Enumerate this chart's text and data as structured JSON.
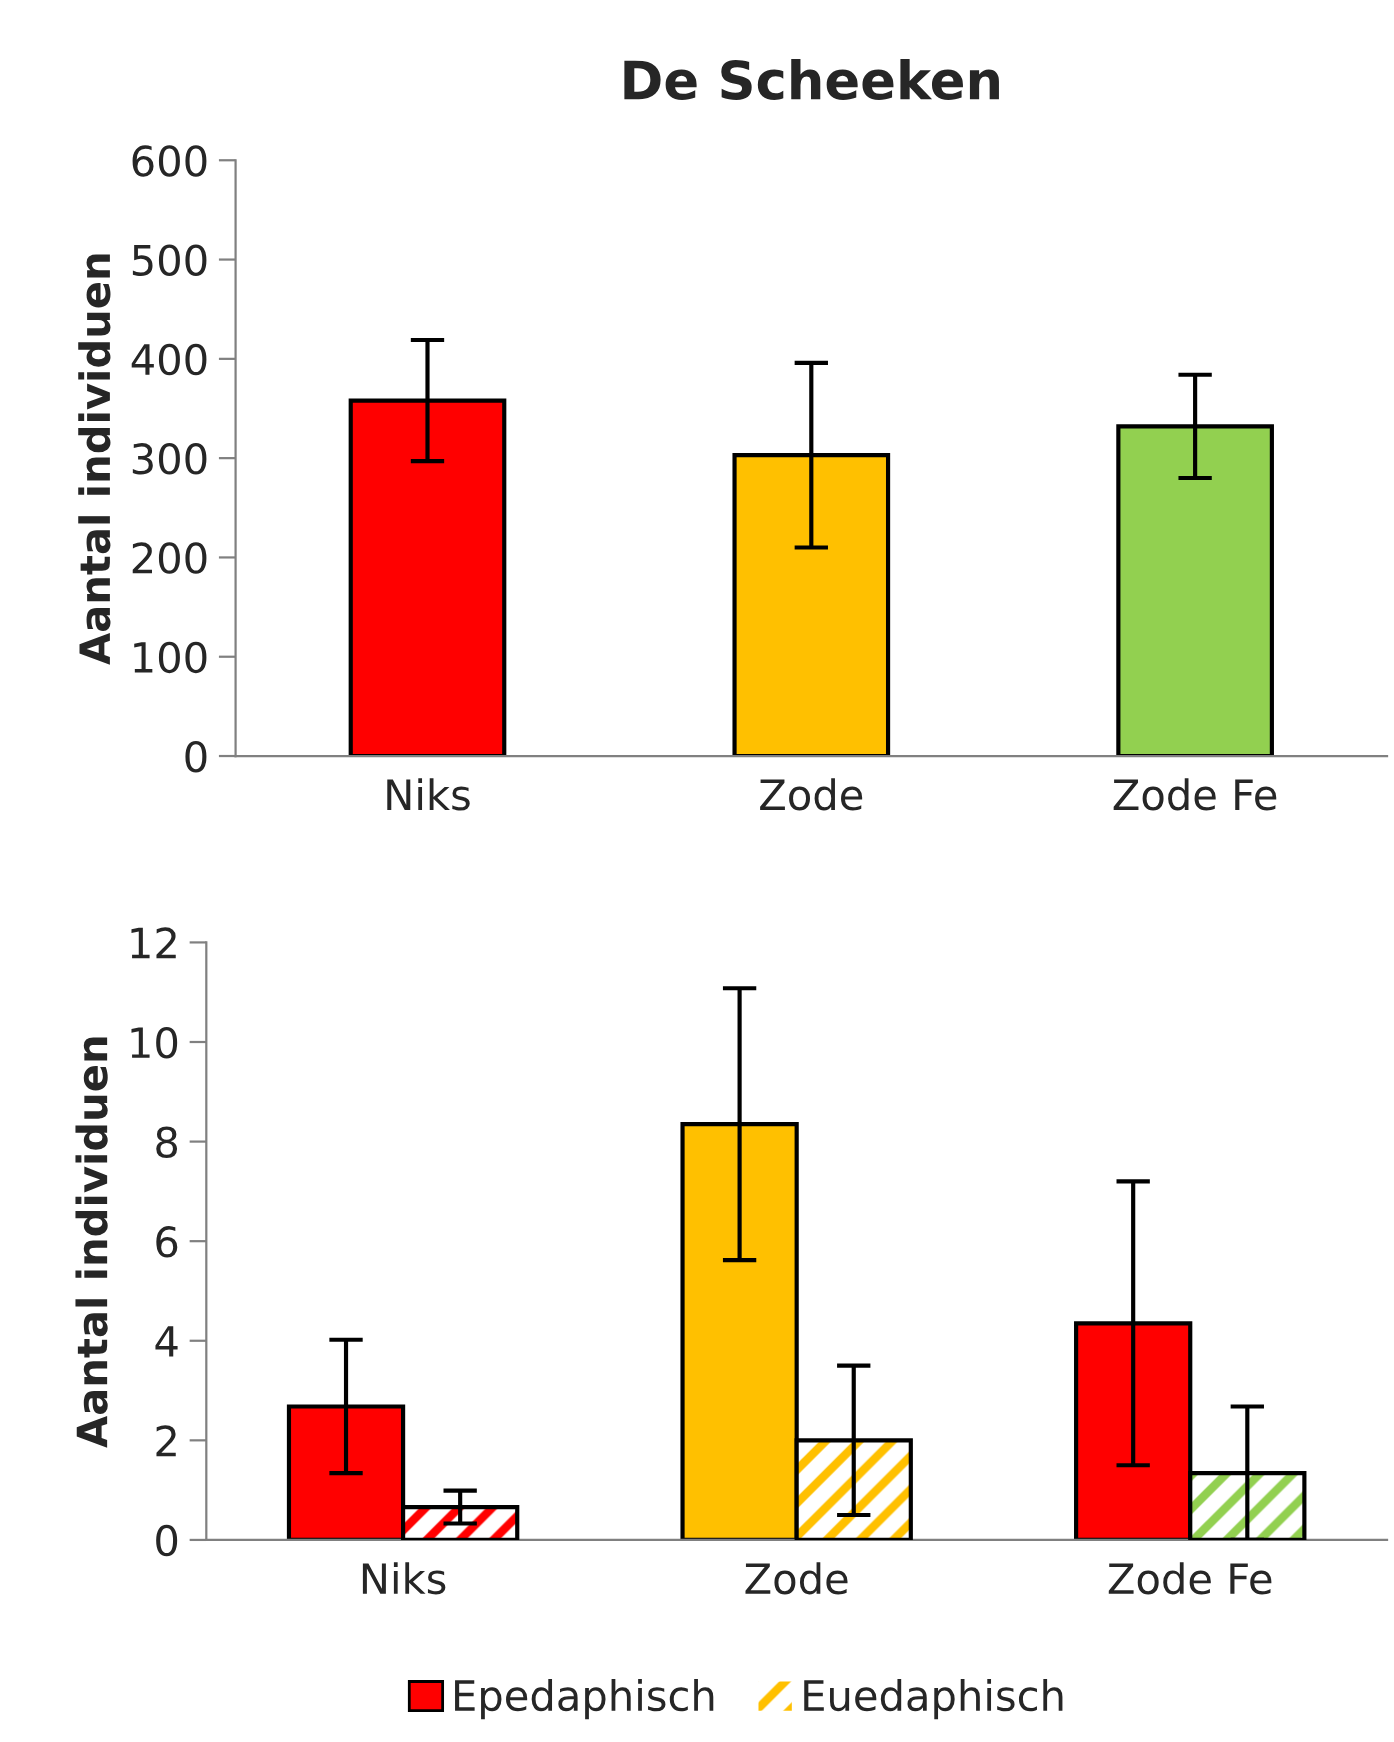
{
  "chart_data": [
    {
      "type": "bar",
      "title": "De Scheeken",
      "ylabel": "Aantal individuen",
      "categories": [
        "Niks",
        "Zode",
        "Zode Fe"
      ],
      "series": [
        {
          "colors": [
            "#ff0000",
            "#ffc000",
            "#92d050"
          ],
          "values": [
            358,
            303,
            332
          ],
          "errors": [
            61,
            93,
            52
          ]
        }
      ],
      "ylim": [
        0,
        600
      ],
      "yticks": [
        0,
        100,
        200,
        300,
        400,
        500,
        600
      ],
      "grid": false,
      "legend": false
    },
    {
      "type": "bar",
      "ylabel": "Aantal individuen",
      "categories": [
        "Niks",
        "Zode",
        "Zode Fe"
      ],
      "series": [
        {
          "name": "Epedaphisch",
          "color": "#ff0000",
          "colors": [
            "#ff0000",
            "#ffc000",
            "#ff0000"
          ],
          "values": [
            2.68,
            8.35,
            4.35
          ],
          "errors": [
            1.34,
            2.73,
            2.85
          ]
        },
        {
          "name": "Euedaphisch",
          "color": "#ffc000",
          "colors": [
            "#ff0000",
            "#ffc000",
            "#92d050"
          ],
          "values": [
            0.66,
            2.0,
            1.34
          ],
          "errors": [
            0.33,
            1.5,
            1.34
          ]
        }
      ],
      "ylim": [
        0,
        12
      ],
      "yticks": [
        0,
        2,
        4,
        6,
        8,
        10,
        12
      ],
      "grid": false,
      "legend": "bottom"
    }
  ]
}
